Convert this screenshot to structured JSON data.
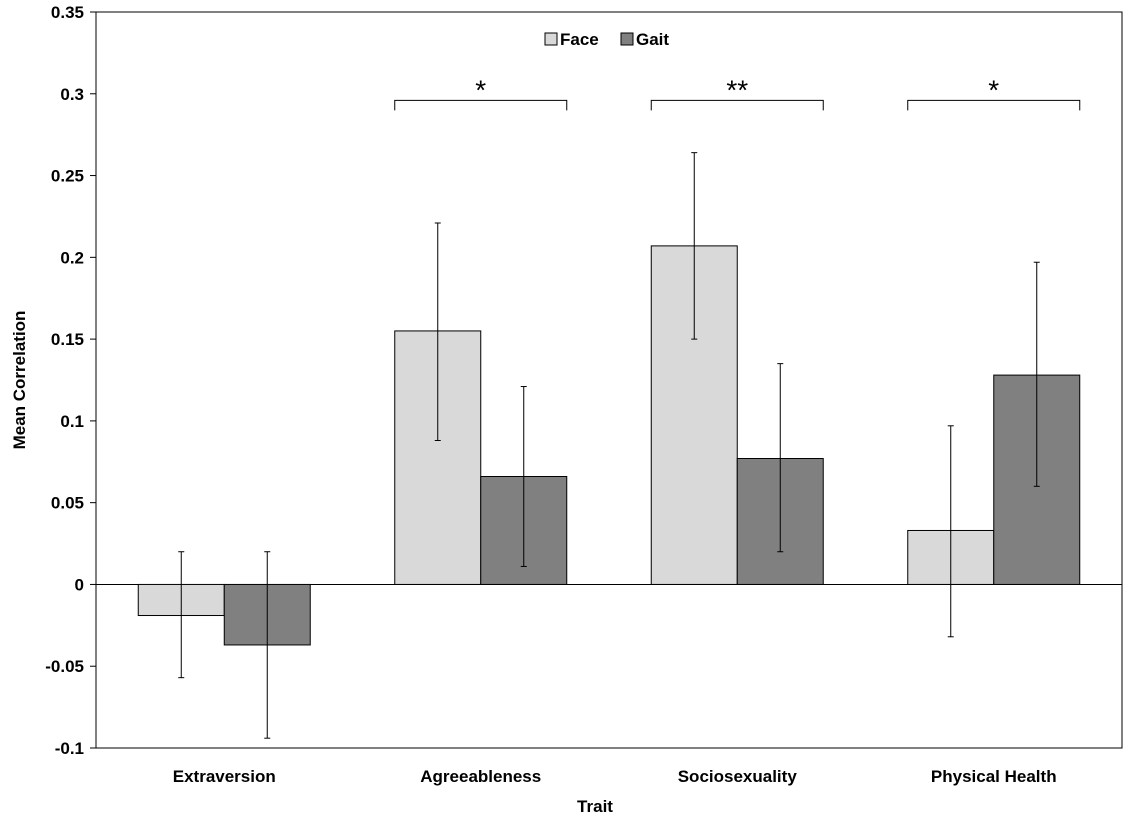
{
  "chart_data": {
    "type": "bar",
    "xlabel": "Trait",
    "ylabel": "Mean Correlation",
    "ylim": [
      -0.1,
      0.35
    ],
    "yticks": [
      -0.1,
      -0.05,
      0,
      0.05,
      0.1,
      0.15,
      0.2,
      0.25,
      0.3,
      0.35
    ],
    "ytick_labels": [
      "-0.1",
      "-0.05",
      "0",
      "0.05",
      "0.1",
      "0.15",
      "0.2",
      "0.25",
      "0.3",
      "0.35"
    ],
    "categories": [
      "Extraversion",
      "Agreeableness",
      "Sociosexuality",
      "Physical Health"
    ],
    "series": [
      {
        "name": "Face",
        "color": "#d9d9d9",
        "values": [
          -0.019,
          0.155,
          0.207,
          0.033
        ],
        "err_low": [
          -0.057,
          0.088,
          0.15,
          -0.032
        ],
        "err_high": [
          0.02,
          0.221,
          0.264,
          0.097
        ]
      },
      {
        "name": "Gait",
        "color": "#808080",
        "values": [
          -0.037,
          0.066,
          0.077,
          0.128
        ],
        "err_low": [
          -0.094,
          0.011,
          0.02,
          0.06
        ],
        "err_high": [
          0.02,
          0.121,
          0.135,
          0.197
        ]
      }
    ],
    "significance": [
      {
        "category_index": 1,
        "label": "*",
        "y": 0.296
      },
      {
        "category_index": 2,
        "label": "**",
        "y": 0.296
      },
      {
        "category_index": 3,
        "label": "*",
        "y": 0.296
      }
    ],
    "legend_position": "top-center",
    "grid": false
  }
}
